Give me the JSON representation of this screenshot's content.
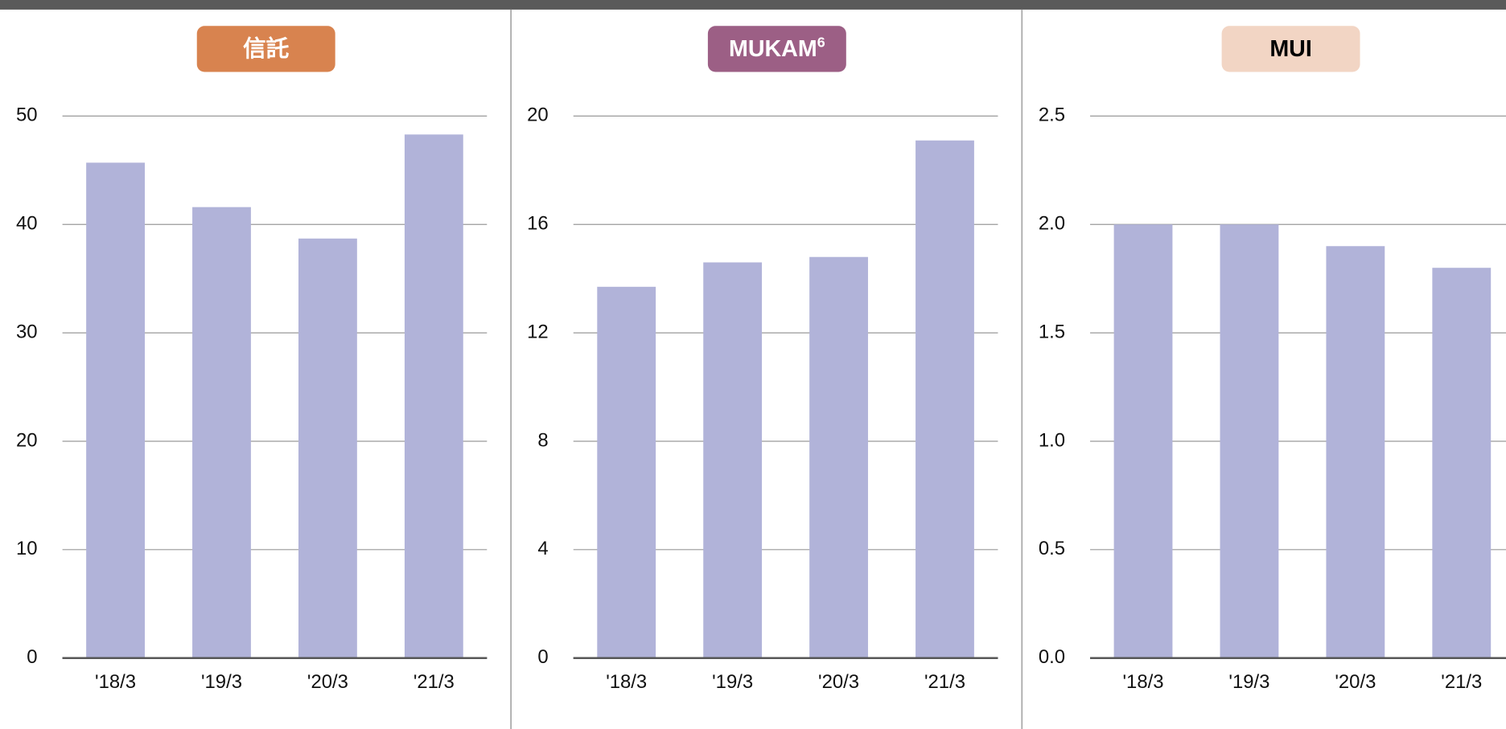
{
  "chart_data": [
    {
      "type": "bar",
      "title": "信託",
      "title_color": "#d8834f",
      "title_text_color": "#ffffff",
      "categories": [
        "'18/3",
        "'19/3",
        "'20/3",
        "'21/3"
      ],
      "values": [
        45.7,
        41.6,
        38.7,
        48.3
      ],
      "color": "#b1b3d9",
      "ylim": [
        0,
        50
      ],
      "yticks": [
        0,
        10,
        20,
        30,
        40,
        50
      ],
      "grid": true
    },
    {
      "type": "bar",
      "title": "MUKAM",
      "title_superscript": "6",
      "title_color": "#9c5f85",
      "title_text_color": "#ffffff",
      "categories": [
        "'18/3",
        "'19/3",
        "'20/3",
        "'21/3"
      ],
      "values": [
        13.7,
        14.6,
        14.8,
        19.1
      ],
      "color": "#b1b3d9",
      "ylim": [
        0,
        20
      ],
      "yticks": [
        0,
        4,
        8,
        12,
        16,
        20
      ],
      "grid": true
    },
    {
      "type": "bar",
      "title": "MUI",
      "title_color": "#f2d5c4",
      "title_text_color": "#000000",
      "categories": [
        "'18/3",
        "'19/3",
        "'20/3",
        "'21/3"
      ],
      "values": [
        2.0,
        2.0,
        1.9,
        1.8
      ],
      "color": "#b1b3d9",
      "ylim": [
        0,
        2.5
      ],
      "yticks": [
        {
          "value": 0,
          "label": "0.0"
        },
        0.5,
        {
          "value": 1,
          "label": "1.0"
        },
        1.5,
        {
          "value": 2,
          "label": "2.0"
        },
        2.5
      ],
      "grid": true
    }
  ]
}
